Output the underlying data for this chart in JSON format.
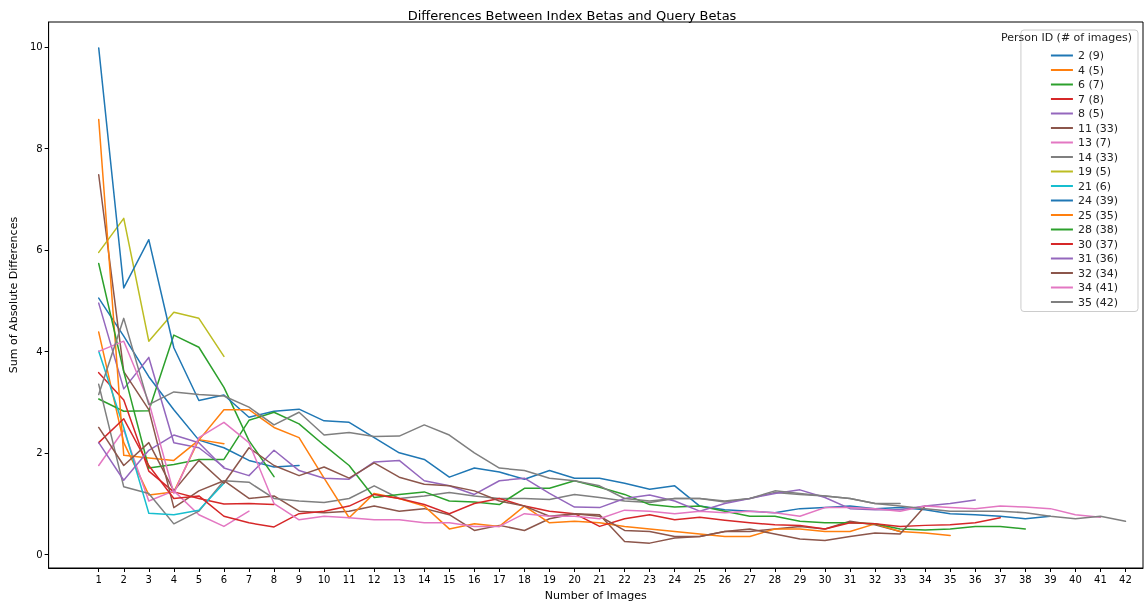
{
  "chart_data": {
    "type": "line",
    "title": "Differences Between Index Betas and Query Betas",
    "xlabel": "Number of Images",
    "ylabel": "Sum of Absolute Differences",
    "legend_title": "Person ID (# of images)",
    "legend": "top right",
    "grid": false,
    "marker": "none",
    "line_style": "solid",
    "xlim": [
      -1,
      42.7
    ],
    "xticks": [
      1,
      2,
      3,
      4,
      5,
      6,
      7,
      8,
      9,
      10,
      11,
      12,
      13,
      14,
      15,
      16,
      17,
      18,
      19,
      20,
      21,
      22,
      23,
      24,
      25,
      26,
      27,
      28,
      29,
      30,
      31,
      32,
      33,
      34,
      35,
      36,
      37,
      38,
      39,
      40,
      41,
      42
    ],
    "ylim": [
      -0.27,
      10.49
    ],
    "yticks": [
      0,
      2,
      4,
      6,
      8,
      10
    ],
    "series": [
      {
        "name": "2 (9)",
        "color": "#1f77b4",
        "x": [
          1,
          2,
          3,
          4,
          5,
          6,
          7,
          8,
          9
        ],
        "values": [
          5.05,
          4.3,
          3.5,
          2.85,
          2.25,
          2.1,
          1.85,
          1.72,
          1.75
        ]
      },
      {
        "name": "4 (5)",
        "color": "#ff7f0e",
        "x": [
          1,
          2,
          3,
          4,
          5,
          6
        ],
        "values": [
          4.38,
          2.2,
          1.17,
          1.23,
          2.26,
          2.18
        ]
      },
      {
        "name": "6 (7)",
        "color": "#2ca02c",
        "x": [
          1,
          2,
          3,
          4,
          5,
          6,
          7,
          8
        ],
        "values": [
          3.06,
          2.82,
          2.83,
          4.32,
          4.08,
          3.29,
          2.24,
          1.53
        ]
      },
      {
        "name": "7 (8)",
        "color": "#d62728",
        "x": [
          1,
          2,
          3,
          4,
          5,
          6,
          7,
          8
        ],
        "values": [
          3.58,
          3.04,
          1.64,
          1.23,
          1.1,
          0.99,
          1.0,
          0.98
        ]
      },
      {
        "name": "8 (5)",
        "color": "#9467bd",
        "x": [
          1,
          2,
          3,
          4,
          5,
          6
        ],
        "values": [
          4.95,
          3.26,
          3.88,
          2.2,
          2.1,
          1.72
        ]
      },
      {
        "name": "11 (33)",
        "color": "#8c564b",
        "x": [
          1,
          2,
          3,
          4,
          5,
          6,
          7,
          8,
          9,
          10,
          11,
          12,
          13,
          14,
          15,
          16,
          17,
          18,
          19,
          20,
          21,
          22,
          23,
          24,
          25,
          26,
          27,
          28,
          29,
          30,
          31,
          32,
          33
        ],
        "values": [
          7.48,
          3.6,
          2.85,
          0.92,
          1.25,
          1.45,
          1.1,
          1.15,
          0.85,
          0.82,
          0.85,
          0.95,
          0.85,
          0.9,
          0.78,
          0.47,
          0.57,
          0.47,
          0.7,
          0.8,
          0.78,
          0.25,
          0.22,
          0.32,
          0.35,
          0.45,
          0.45,
          0.5,
          0.55,
          0.5,
          0.65,
          0.58,
          0.45
        ]
      },
      {
        "name": "13 (7)",
        "color": "#e377c2",
        "x": [
          1,
          2,
          3,
          4,
          5,
          6,
          7
        ],
        "values": [
          1.75,
          2.45,
          1.05,
          1.25,
          0.78,
          0.55,
          0.85
        ]
      },
      {
        "name": "14 (33)",
        "color": "#7f7f7f",
        "x": [
          1,
          2,
          3,
          4,
          5,
          6,
          7,
          8,
          9,
          10,
          11,
          12,
          13,
          14,
          15,
          16,
          17,
          18,
          19,
          20,
          21,
          22,
          23,
          24,
          25,
          26,
          27,
          28,
          29,
          30,
          31,
          32,
          33
        ],
        "values": [
          3.35,
          1.33,
          1.2,
          0.6,
          0.85,
          1.45,
          1.42,
          1.1,
          1.05,
          1.02,
          1.1,
          1.35,
          1.1,
          1.15,
          1.22,
          1.15,
          1.1,
          1.1,
          1.08,
          1.18,
          1.12,
          1.05,
          1.02,
          1.1,
          1.1,
          1.03,
          1.1,
          1.22,
          1.18,
          1.15,
          1.1,
          1.0,
          1.0
        ]
      },
      {
        "name": "19 (5)",
        "color": "#bcbd22",
        "x": [
          1,
          2,
          3,
          4,
          5,
          6
        ],
        "values": [
          5.95,
          6.62,
          4.2,
          4.77,
          4.65,
          3.9
        ]
      },
      {
        "name": "21 (6)",
        "color": "#17becf",
        "x": [
          1,
          2,
          3,
          4,
          5,
          6
        ],
        "values": [
          4.0,
          2.5,
          0.81,
          0.78,
          0.87,
          1.4
        ]
      },
      {
        "name": "24 (39)",
        "color": "#1f77b4",
        "x": [
          1,
          2,
          3,
          4,
          5,
          6,
          7,
          8,
          9,
          10,
          11,
          12,
          13,
          14,
          15,
          16,
          17,
          18,
          19,
          20,
          21,
          22,
          23,
          24,
          25,
          26,
          27,
          28,
          29,
          30,
          31,
          32,
          33,
          34,
          35,
          36,
          37,
          38,
          39
        ],
        "values": [
          9.98,
          5.25,
          6.2,
          4.07,
          3.03,
          3.14,
          2.7,
          2.82,
          2.86,
          2.63,
          2.6,
          2.3,
          2.0,
          1.87,
          1.52,
          1.7,
          1.62,
          1.48,
          1.65,
          1.5,
          1.5,
          1.4,
          1.28,
          1.35,
          0.95,
          0.88,
          0.85,
          0.82,
          0.9,
          0.92,
          0.95,
          0.9,
          0.92,
          0.88,
          0.8,
          0.78,
          0.75,
          0.7,
          0.75
        ]
      },
      {
        "name": "25 (35)",
        "color": "#ff7f0e",
        "x": [
          1,
          2,
          3,
          4,
          5,
          6,
          7,
          8,
          9,
          10,
          11,
          12,
          13,
          14,
          15,
          16,
          17,
          18,
          19,
          20,
          21,
          22,
          23,
          24,
          25,
          26,
          27,
          28,
          29,
          30,
          31,
          32,
          33,
          34,
          35
        ],
        "values": [
          8.57,
          1.95,
          1.9,
          1.85,
          2.25,
          2.85,
          2.85,
          2.5,
          2.3,
          1.5,
          0.72,
          1.2,
          1.1,
          0.95,
          0.5,
          0.6,
          0.55,
          0.95,
          0.62,
          0.65,
          0.62,
          0.55,
          0.5,
          0.45,
          0.4,
          0.35,
          0.35,
          0.5,
          0.5,
          0.45,
          0.45,
          0.6,
          0.45,
          0.42,
          0.37
        ]
      },
      {
        "name": "28 (38)",
        "color": "#2ca02c",
        "x": [
          1,
          2,
          3,
          4,
          5,
          6,
          7,
          8,
          9,
          10,
          11,
          12,
          13,
          14,
          15,
          16,
          17,
          18,
          19,
          20,
          21,
          22,
          23,
          24,
          25,
          26,
          27,
          28,
          29,
          30,
          31,
          32,
          33,
          34,
          35,
          36,
          37,
          38
        ],
        "values": [
          5.73,
          3.6,
          1.7,
          1.77,
          1.87,
          1.87,
          2.64,
          2.8,
          2.57,
          2.15,
          1.75,
          1.12,
          1.18,
          1.23,
          1.05,
          1.03,
          0.98,
          1.3,
          1.3,
          1.45,
          1.32,
          1.18,
          0.98,
          0.93,
          0.95,
          0.85,
          0.75,
          0.75,
          0.65,
          0.62,
          0.62,
          0.6,
          0.5,
          0.48,
          0.5,
          0.55,
          0.55,
          0.5
        ]
      },
      {
        "name": "30 (37)",
        "color": "#d62728",
        "x": [
          1,
          2,
          3,
          4,
          5,
          6,
          7,
          8,
          9,
          10,
          11,
          12,
          13,
          14,
          15,
          16,
          17,
          18,
          19,
          20,
          21,
          22,
          23,
          24,
          25,
          26,
          27,
          28,
          29,
          30,
          31,
          32,
          33,
          34,
          35,
          36,
          37
        ],
        "values": [
          2.2,
          2.67,
          1.75,
          1.1,
          1.15,
          0.75,
          0.62,
          0.54,
          0.8,
          0.85,
          0.95,
          1.18,
          1.1,
          0.98,
          0.8,
          1.0,
          1.1,
          0.95,
          0.85,
          0.8,
          0.55,
          0.7,
          0.78,
          0.68,
          0.73,
          0.67,
          0.62,
          0.58,
          0.57,
          0.5,
          0.62,
          0.6,
          0.55,
          0.57,
          0.58,
          0.62,
          0.72
        ]
      },
      {
        "name": "31 (36)",
        "color": "#9467bd",
        "x": [
          1,
          2,
          3,
          4,
          5,
          6,
          7,
          8,
          9,
          10,
          11,
          12,
          13,
          14,
          15,
          16,
          17,
          18,
          19,
          20,
          21,
          22,
          23,
          24,
          25,
          26,
          27,
          28,
          29,
          30,
          31,
          32,
          33,
          34,
          35,
          36
        ],
        "values": [
          2.2,
          1.46,
          2.05,
          2.35,
          2.2,
          1.7,
          1.55,
          2.05,
          1.65,
          1.5,
          1.48,
          1.82,
          1.85,
          1.45,
          1.35,
          1.18,
          1.45,
          1.5,
          1.2,
          0.93,
          0.92,
          1.1,
          1.17,
          1.05,
          0.85,
          1.0,
          1.1,
          1.2,
          1.27,
          1.12,
          0.9,
          0.88,
          0.88,
          0.95,
          1.0,
          1.07
        ]
      },
      {
        "name": "32 (34)",
        "color": "#8c564b",
        "x": [
          1,
          2,
          3,
          4,
          5,
          6,
          7,
          8,
          9,
          10,
          11,
          12,
          13,
          14,
          15,
          16,
          17,
          18,
          19,
          20,
          21,
          22,
          23,
          24,
          25,
          26,
          27,
          28,
          29,
          30,
          31,
          32,
          33,
          34
        ],
        "values": [
          2.5,
          1.75,
          2.2,
          1.25,
          1.85,
          1.4,
          2.1,
          1.75,
          1.55,
          1.72,
          1.5,
          1.8,
          1.52,
          1.38,
          1.35,
          1.25,
          1.05,
          0.95,
          0.75,
          0.8,
          0.75,
          0.47,
          0.45,
          0.35,
          0.35,
          0.45,
          0.5,
          0.4,
          0.3,
          0.27,
          0.35,
          0.42,
          0.4,
          0.95
        ]
      },
      {
        "name": "34 (41)",
        "color": "#e377c2",
        "x": [
          1,
          2,
          3,
          4,
          5,
          6,
          7,
          8,
          9,
          10,
          11,
          12,
          13,
          14,
          15,
          16,
          17,
          18,
          19,
          20,
          21,
          22,
          23,
          24,
          25,
          26,
          27,
          28,
          29,
          30,
          31,
          32,
          33,
          34,
          35,
          36,
          37,
          38,
          39,
          40,
          41
        ],
        "values": [
          4.0,
          4.2,
          3.0,
          1.2,
          2.3,
          2.6,
          2.2,
          1.0,
          0.68,
          0.75,
          0.72,
          0.68,
          0.68,
          0.62,
          0.62,
          0.55,
          0.55,
          0.8,
          0.75,
          0.75,
          0.7,
          0.87,
          0.85,
          0.8,
          0.85,
          0.82,
          0.85,
          0.82,
          0.75,
          0.92,
          0.92,
          0.9,
          0.85,
          0.95,
          0.92,
          0.9,
          0.95,
          0.93,
          0.9,
          0.78,
          0.73
        ]
      },
      {
        "name": "35 (42)",
        "color": "#7f7f7f",
        "x": [
          1,
          2,
          3,
          4,
          5,
          6,
          7,
          8,
          9,
          10,
          11,
          12,
          13,
          14,
          15,
          16,
          17,
          18,
          19,
          20,
          21,
          22,
          23,
          24,
          25,
          26,
          27,
          28,
          29,
          30,
          31,
          32,
          33,
          34,
          35,
          36,
          37,
          38,
          39,
          40,
          41,
          42
        ],
        "values": [
          3.15,
          4.65,
          2.95,
          3.2,
          3.15,
          3.12,
          2.9,
          2.55,
          2.8,
          2.35,
          2.4,
          2.32,
          2.33,
          2.55,
          2.35,
          2.0,
          1.7,
          1.65,
          1.5,
          1.45,
          1.35,
          1.1,
          1.05,
          1.1,
          1.1,
          1.05,
          1.1,
          1.25,
          1.2,
          1.15,
          1.1,
          1.0,
          0.95,
          0.9,
          0.85,
          0.85,
          0.85,
          0.82,
          0.75,
          0.7,
          0.75,
          0.65
        ]
      }
    ]
  }
}
